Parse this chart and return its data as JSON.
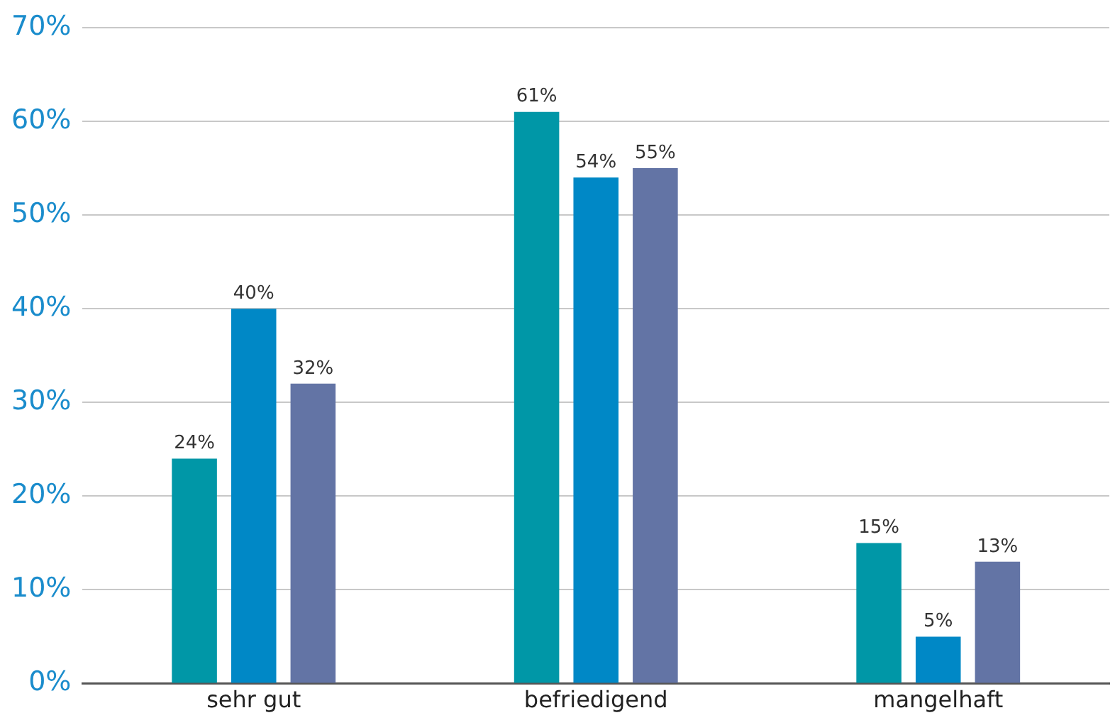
{
  "chart_data": {
    "type": "bar",
    "categories": [
      "sehr gut",
      "befriedigend",
      "mangelhaft"
    ],
    "series": [
      {
        "color": "#0097a7",
        "values": [
          24,
          61,
          15
        ],
        "value_labels": [
          "24%",
          "61%",
          "15%"
        ]
      },
      {
        "color": "#0088c6",
        "values": [
          40,
          54,
          5
        ],
        "value_labels": [
          "40%",
          "54%",
          "5%"
        ]
      },
      {
        "color": "#6374a5",
        "values": [
          32,
          55,
          13
        ],
        "value_labels": [
          "32%",
          "55%",
          "13%"
        ]
      }
    ],
    "ylim": [
      0,
      70
    ],
    "yticks": [
      {
        "value": 0,
        "label": "0%"
      },
      {
        "value": 10,
        "label": "10%"
      },
      {
        "value": 20,
        "label": "20%"
      },
      {
        "value": 30,
        "label": "30%"
      },
      {
        "value": 40,
        "label": "40%"
      },
      {
        "value": 50,
        "label": "50%"
      },
      {
        "value": 60,
        "label": "60%"
      },
      {
        "value": 70,
        "label": "70%"
      }
    ],
    "grid": "y",
    "legend": false
  }
}
